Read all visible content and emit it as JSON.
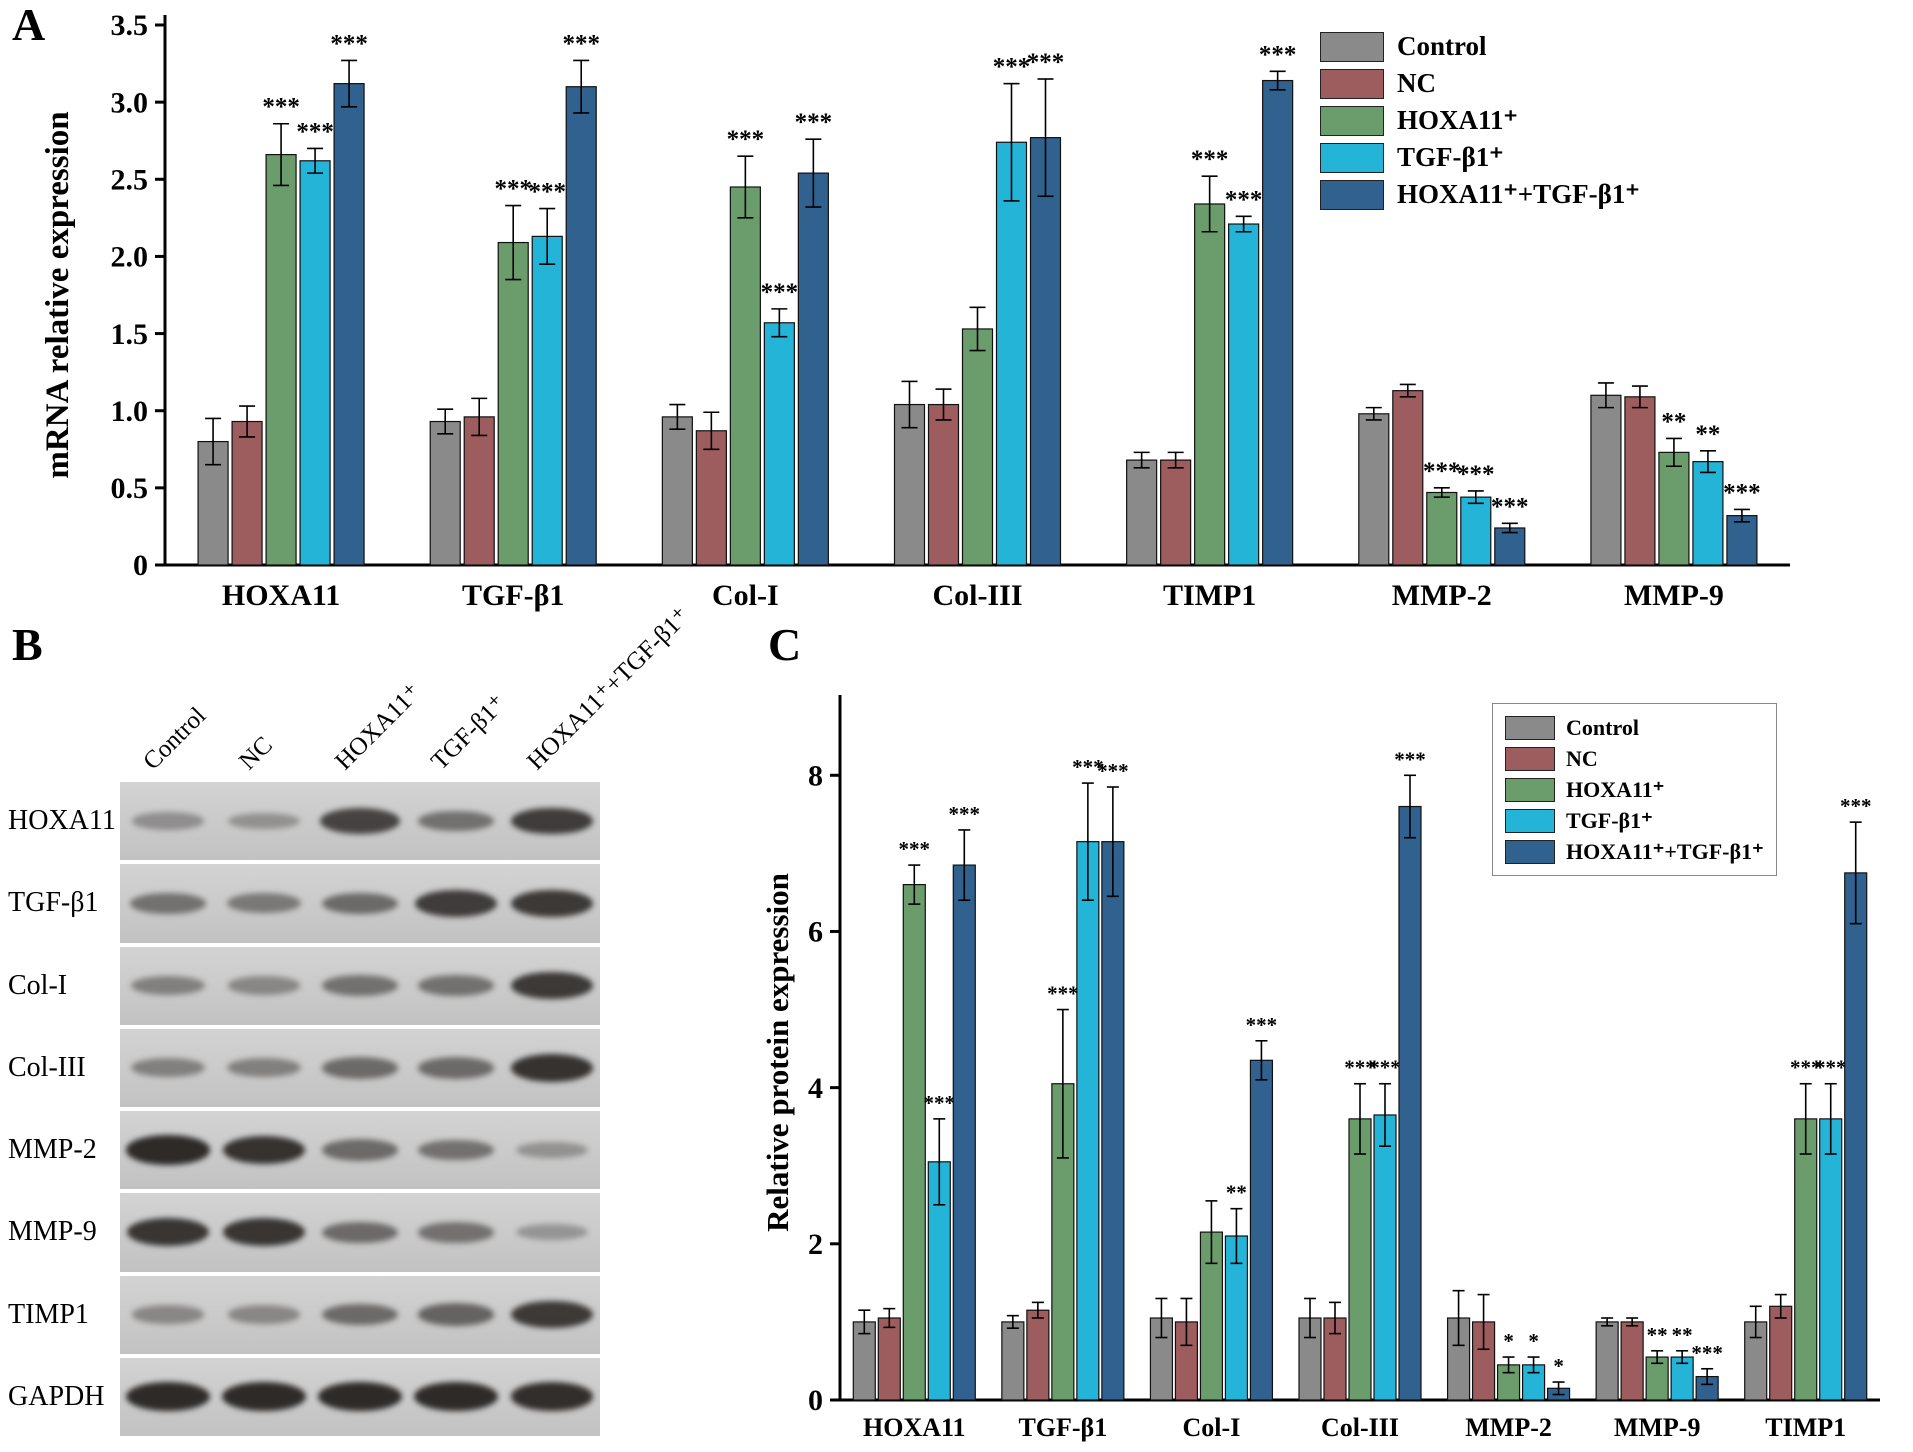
{
  "figure": {
    "panel_a_label": "A",
    "panel_b_label": "B",
    "panel_c_label": "C"
  },
  "chart_data": [
    {
      "id": "panel-a",
      "type": "bar",
      "title": "",
      "xlabel": "",
      "ylabel": "mRNA relative expression",
      "ylim": [
        0,
        3.5
      ],
      "yticks": [
        0,
        0.5,
        1.0,
        1.5,
        2.0,
        2.5,
        3.0,
        3.5
      ],
      "ytick_labels": [
        "0",
        "0.5",
        "1.0",
        "1.5",
        "2.0",
        "2.5",
        "3.0",
        "3.5"
      ],
      "grid": false,
      "legend_position": "top-right",
      "categories": [
        "HOXA11",
        "TGF-β1",
        "Col-I",
        "Col-III",
        "TIMP1",
        "MMP-2",
        "MMP-9"
      ],
      "series": [
        {
          "name": "Control",
          "color": "#8a8a8a",
          "values": [
            0.8,
            0.93,
            0.96,
            1.04,
            0.68,
            0.98,
            1.1
          ],
          "errors": [
            0.15,
            0.08,
            0.08,
            0.15,
            0.05,
            0.04,
            0.08
          ],
          "sig": [
            "",
            "",
            "",
            "",
            "",
            "",
            ""
          ]
        },
        {
          "name": "NC",
          "color": "#9d5c5e",
          "values": [
            0.93,
            0.96,
            0.87,
            1.04,
            0.68,
            1.13,
            1.09
          ],
          "errors": [
            0.1,
            0.12,
            0.12,
            0.1,
            0.05,
            0.04,
            0.07
          ],
          "sig": [
            "",
            "",
            "",
            "",
            "",
            "",
            ""
          ]
        },
        {
          "name": "HOXA11⁺",
          "color": "#6b9c6b",
          "values": [
            2.66,
            2.09,
            2.45,
            1.53,
            2.34,
            0.47,
            0.73
          ],
          "errors": [
            0.2,
            0.24,
            0.2,
            0.14,
            0.18,
            0.03,
            0.09
          ],
          "sig": [
            "***",
            "***",
            "***",
            "",
            "***",
            "***",
            "**"
          ]
        },
        {
          "name": "TGF-β1⁺",
          "color": "#24b4d8",
          "values": [
            2.62,
            2.13,
            1.57,
            2.74,
            2.21,
            0.44,
            0.67
          ],
          "errors": [
            0.08,
            0.18,
            0.09,
            0.38,
            0.05,
            0.04,
            0.07
          ],
          "sig": [
            "***",
            "***",
            "***",
            "***",
            "***",
            "***",
            "**"
          ]
        },
        {
          "name": "HOXA11⁺+TGF-β1⁺",
          "color": "#30618f",
          "values": [
            3.12,
            3.1,
            2.54,
            2.77,
            3.14,
            0.24,
            0.32
          ],
          "errors": [
            0.15,
            0.17,
            0.22,
            0.38,
            0.06,
            0.03,
            0.04
          ],
          "sig": [
            "***",
            "***",
            "***",
            "***",
            "***",
            "***",
            "***"
          ]
        }
      ]
    },
    {
      "id": "panel-c",
      "type": "bar",
      "title": "",
      "xlabel": "",
      "ylabel": "Relative protein expression",
      "ylim": [
        0,
        8.9
      ],
      "yticks": [
        0,
        2,
        4,
        6,
        8
      ],
      "ytick_labels": [
        "0",
        "2",
        "4",
        "6",
        "8"
      ],
      "grid": false,
      "legend_position": "top-right",
      "categories": [
        "HOXA11",
        "TGF-β1",
        "Col-I",
        "Col-III",
        "MMP-2",
        "MMP-9",
        "TIMP1"
      ],
      "series": [
        {
          "name": "Control",
          "color": "#8a8a8a",
          "values": [
            1.0,
            1.0,
            1.05,
            1.05,
            1.05,
            1.0,
            1.0
          ],
          "errors": [
            0.15,
            0.08,
            0.25,
            0.25,
            0.35,
            0.05,
            0.2
          ],
          "sig": [
            "",
            "",
            "",
            "",
            "",
            "",
            ""
          ]
        },
        {
          "name": "NC",
          "color": "#9d5c5e",
          "values": [
            1.05,
            1.15,
            1.0,
            1.05,
            1.0,
            1.0,
            1.2
          ],
          "errors": [
            0.12,
            0.1,
            0.3,
            0.2,
            0.35,
            0.05,
            0.15
          ],
          "sig": [
            "",
            "",
            "",
            "",
            "",
            "",
            ""
          ]
        },
        {
          "name": "HOXA11⁺",
          "color": "#6b9c6b",
          "values": [
            6.6,
            4.05,
            2.15,
            3.6,
            0.45,
            0.55,
            3.6
          ],
          "errors": [
            0.25,
            0.95,
            0.4,
            0.45,
            0.1,
            0.08,
            0.45
          ],
          "sig": [
            "***",
            "***",
            "",
            "***",
            "*",
            "**",
            "***"
          ]
        },
        {
          "name": "TGF-β1⁺",
          "color": "#24b4d8",
          "values": [
            3.05,
            7.15,
            2.1,
            3.65,
            0.45,
            0.55,
            3.6
          ],
          "errors": [
            0.55,
            0.75,
            0.35,
            0.4,
            0.1,
            0.08,
            0.45
          ],
          "sig": [
            "***",
            "***",
            "**",
            "***",
            "*",
            "**",
            "***"
          ]
        },
        {
          "name": "HOXA11⁺+TGF-β1⁺",
          "color": "#30618f",
          "values": [
            6.85,
            7.15,
            4.35,
            7.6,
            0.15,
            0.3,
            6.75
          ],
          "errors": [
            0.45,
            0.7,
            0.25,
            0.4,
            0.08,
            0.1,
            0.65
          ],
          "sig": [
            "***",
            "***",
            "***",
            "***",
            "*",
            "***",
            "***"
          ]
        }
      ]
    }
  ],
  "western_blot": {
    "column_labels": [
      "Control",
      "NC",
      "HOXA11⁺",
      "TGF-β1⁺",
      "HOXA11⁺+TGF-β1⁺"
    ],
    "rows": [
      {
        "label": "HOXA11",
        "bands": [
          0.25,
          0.22,
          0.78,
          0.45,
          0.82
        ]
      },
      {
        "label": "TGF-β1",
        "bands": [
          0.45,
          0.4,
          0.5,
          0.82,
          0.85
        ]
      },
      {
        "label": "Col-I",
        "bands": [
          0.35,
          0.3,
          0.45,
          0.45,
          0.85
        ]
      },
      {
        "label": "Col-III",
        "bands": [
          0.35,
          0.35,
          0.5,
          0.5,
          0.9
        ]
      },
      {
        "label": "MMP-2",
        "bands": [
          0.95,
          0.9,
          0.5,
          0.45,
          0.22
        ]
      },
      {
        "label": "MMP-9",
        "bands": [
          0.88,
          0.88,
          0.5,
          0.45,
          0.2
        ]
      },
      {
        "label": "TIMP1",
        "bands": [
          0.3,
          0.3,
          0.5,
          0.55,
          0.85
        ]
      },
      {
        "label": "GAPDH",
        "bands": [
          0.95,
          0.95,
          0.95,
          0.95,
          0.93
        ]
      }
    ]
  }
}
